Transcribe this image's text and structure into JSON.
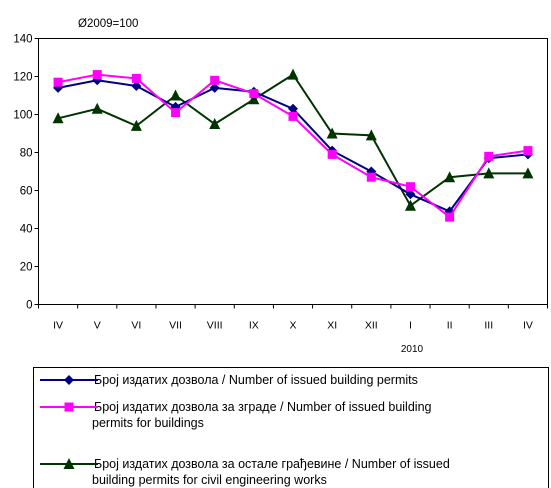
{
  "chart_data": {
    "type": "line",
    "title": "Ø2009=100",
    "categories": [
      "IV",
      "V",
      "VI",
      "VII",
      "VIII",
      "IX",
      "X",
      "XI",
      "XII",
      "I",
      "II",
      "III",
      "IV"
    ],
    "year_label": "2010",
    "ylim": [
      0,
      140
    ],
    "yticks": [
      0,
      20,
      40,
      60,
      80,
      100,
      120,
      140
    ],
    "grid": false,
    "legend_position": "bottom",
    "series": [
      {
        "name": "Број издатих дозвола / Number  of issued building permits",
        "color": "#000080",
        "marker": "diamond",
        "values": [
          114,
          118,
          115,
          104,
          114,
          112,
          103,
          81,
          70,
          58,
          49,
          77,
          79
        ]
      },
      {
        "name": "Број издатих дозвола за зграде  / Number of issued building permits for buildings",
        "color": "#ff00ff",
        "marker": "square",
        "values": [
          117,
          121,
          119,
          101,
          118,
          111,
          99,
          79,
          67,
          62,
          46,
          78,
          81
        ]
      },
      {
        "name": "Број издатих дозвола за остале грађевине  / Number  of  issued building permits for civil engineering works",
        "color": "#003300",
        "marker": "triangle",
        "values": [
          98,
          103,
          94,
          110,
          95,
          108,
          121,
          90,
          89,
          52,
          67,
          69,
          69
        ]
      }
    ]
  },
  "legend": {
    "items": [
      {
        "line1": "Број издатих дозвола / Number  of issued building permits",
        "line2": ""
      },
      {
        "line1": "Број издатих дозвола за зграде  / Number of issued building",
        "line2": "permits for buildings"
      },
      {
        "line1": "Број издатих дозвола за остале грађевине  / Number  of  issued",
        "line2": "building permits for civil engineering works"
      }
    ]
  }
}
